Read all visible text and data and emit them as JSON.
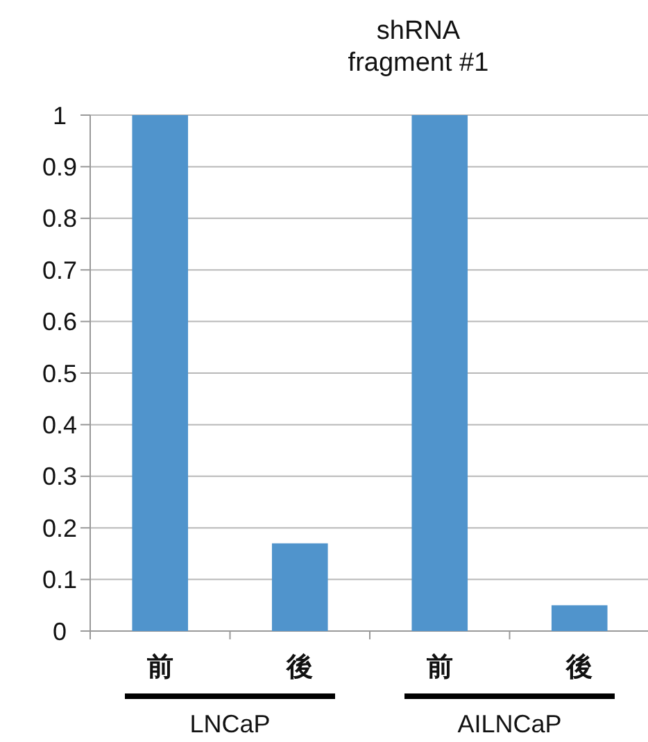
{
  "chart_data": {
    "type": "bar",
    "title": "shRNA\nfragment #1",
    "categories": [
      "前",
      "後",
      "前",
      "後"
    ],
    "values": [
      1,
      0.17,
      1,
      0.05
    ],
    "color": "#5094cc",
    "ylim": [
      0,
      1
    ],
    "yticks": [
      0,
      0.1,
      0.2,
      0.3,
      0.4,
      0.5,
      0.6,
      0.7,
      0.8,
      0.9,
      1
    ],
    "grid": "y",
    "annotations": [
      "LNCaP",
      "AILNCaP"
    ]
  }
}
